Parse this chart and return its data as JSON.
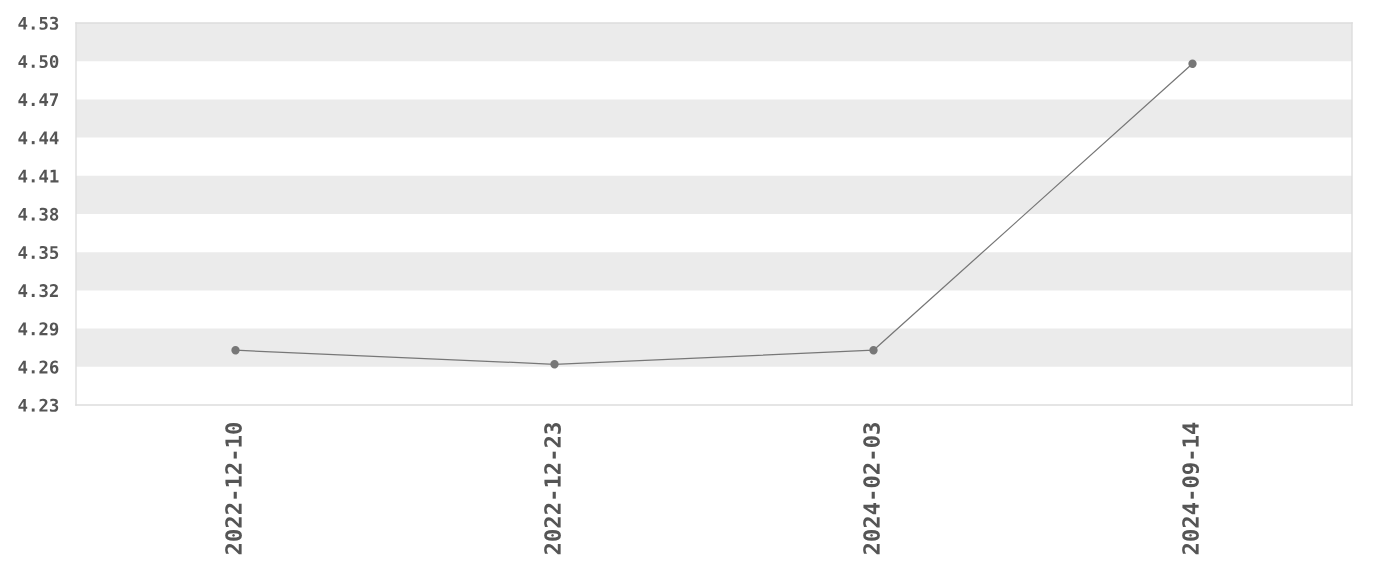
{
  "chart_data": {
    "type": "line",
    "categories": [
      "2022-12-10",
      "2022-12-23",
      "2024-02-03",
      "2024-09-14"
    ],
    "series": [
      {
        "color": "#777777",
        "values": [
          4.273,
          4.262,
          4.273,
          4.498
        ]
      }
    ],
    "ylim": [
      4.23,
      4.53
    ],
    "yticks": [
      4.23,
      4.26,
      4.29,
      4.32,
      4.35,
      4.38,
      4.41,
      4.44,
      4.47,
      {
        "value": 4.5,
        "label": "4.50"
      },
      4.53
    ],
    "bands": [
      {
        "axis": "y",
        "from": 4.5,
        "to": 4.53,
        "color": "#ebebeb"
      },
      {
        "axis": "y",
        "from": 4.44,
        "to": 4.47,
        "color": "#ebebeb"
      },
      {
        "axis": "y",
        "from": 4.38,
        "to": 4.41,
        "color": "#ebebeb"
      },
      {
        "axis": "y",
        "from": 4.32,
        "to": 4.35,
        "color": "#ebebeb"
      },
      {
        "axis": "y",
        "from": 4.26,
        "to": 4.29,
        "color": "#ebebeb"
      }
    ],
    "marker": "circle",
    "line_style": "solid"
  }
}
